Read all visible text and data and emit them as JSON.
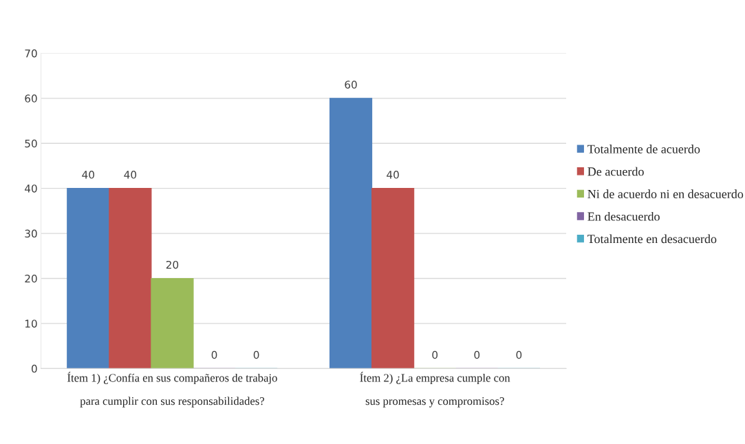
{
  "chart_data": {
    "type": "bar",
    "categories": [
      "Ítem 1) ¿Confía en sus compañeros de trabajo\npara cumplir con sus responsabilidades?",
      "Ítem 2) ¿La empresa cumple con\nsus promesas y compromisos?"
    ],
    "series": [
      {
        "name": "Totalmente de acuerdo",
        "color": "#4f81bd",
        "values": [
          40,
          60
        ]
      },
      {
        "name": "De acuerdo",
        "color": "#c0504d",
        "values": [
          40,
          40
        ]
      },
      {
        "name": "Ni de acuerdo ni en desacuerdo",
        "color": "#9bbb59",
        "values": [
          20,
          0
        ]
      },
      {
        "name": "En desacuerdo",
        "color": "#8064a2",
        "values": [
          0,
          0
        ]
      },
      {
        "name": "Totalmente en desacuerdo",
        "color": "#4bacc6",
        "values": [
          0,
          0
        ]
      }
    ],
    "ylim": [
      0,
      70
    ],
    "yticks": [
      0,
      10,
      20,
      30,
      40,
      50,
      60,
      70
    ],
    "grid": "y",
    "legend": "right",
    "data_labels": true
  }
}
